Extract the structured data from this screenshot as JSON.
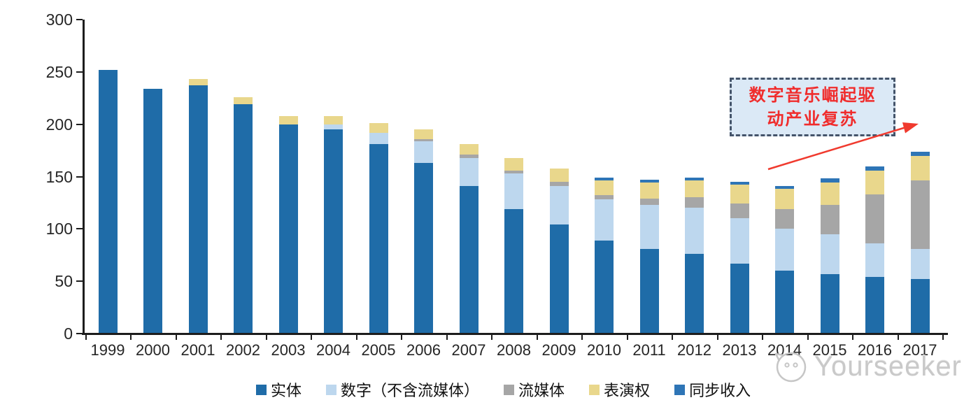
{
  "annotation": {
    "line1": "数字音乐崛起驱",
    "line2": "动产业复苏",
    "text_color": "#F02C2C",
    "box_fill": "#DBE9F6",
    "box_border": "#44546A",
    "arrow_color": "#F03A2E"
  },
  "watermark": {
    "text": "Yourseeker"
  },
  "chart_data": {
    "type": "bar",
    "stacked": true,
    "title": "",
    "categories": [
      "1999",
      "2000",
      "2001",
      "2002",
      "2003",
      "2004",
      "2005",
      "2006",
      "2007",
      "2008",
      "2009",
      "2010",
      "2011",
      "2012",
      "2013",
      "2014",
      "2015",
      "2016",
      "2017"
    ],
    "series": [
      {
        "key": "physical",
        "name": "实体",
        "color": "#1F6CA8",
        "values": [
          252,
          234,
          237,
          219,
          200,
          195,
          181,
          163,
          141,
          119,
          104,
          89,
          81,
          76,
          67,
          60,
          57,
          54,
          52
        ]
      },
      {
        "key": "digital-excl-streaming",
        "name": "数字（不含流媒体）",
        "color": "#BDD7EE",
        "values": [
          0,
          0,
          0,
          0,
          0,
          5,
          11,
          21,
          27,
          34,
          37,
          39,
          42,
          44,
          43,
          40,
          38,
          32,
          29
        ]
      },
      {
        "key": "streaming",
        "name": "流媒体",
        "color": "#A6A6A6",
        "values": [
          0,
          0,
          0,
          0,
          0,
          0,
          0,
          2,
          3,
          3,
          4,
          4,
          6,
          10,
          14,
          19,
          28,
          47,
          65
        ]
      },
      {
        "key": "performance-rights",
        "name": "表演权",
        "color": "#E9D78C",
        "values": [
          0,
          0,
          6,
          7,
          8,
          8,
          9,
          9,
          10,
          12,
          13,
          14,
          15,
          16,
          18,
          19,
          21,
          23,
          24
        ]
      },
      {
        "key": "sync",
        "name": "同步收入",
        "color": "#2E75B6",
        "values": [
          0,
          0,
          0,
          0,
          0,
          0,
          0,
          0,
          0,
          0,
          0,
          3,
          3,
          3,
          3,
          3,
          4,
          4,
          4
        ]
      }
    ],
    "totals": [
      252,
      234,
      243,
      226,
      208,
      208,
      201,
      195,
      181,
      168,
      158,
      149,
      147,
      149,
      145,
      141,
      148,
      160,
      174
    ],
    "ylim": [
      0,
      300
    ],
    "yticks": [
      0,
      50,
      100,
      150,
      200,
      250,
      300
    ],
    "grid": false,
    "legend_position": "bottom"
  }
}
